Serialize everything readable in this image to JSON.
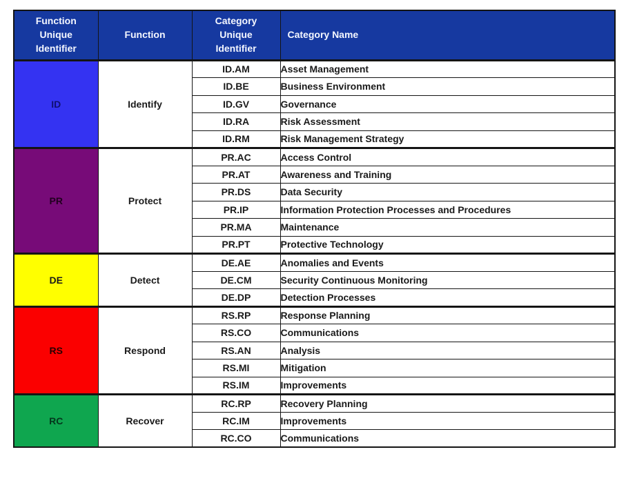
{
  "colors": {
    "header_bg": "#1639A0",
    "header_text": "#F4F7FF",
    "border": "#141414",
    "body_text": "#1A1A1A"
  },
  "table": {
    "headers": [
      "Function\nUnique\nIdentifier",
      "Function",
      "Category\nUnique\nIdentifier",
      "Category Name"
    ],
    "groups": [
      {
        "function_id": "ID",
        "function_name": "Identify",
        "color": "#3433F2",
        "label_color": "#101070",
        "categories": [
          {
            "id": "ID.AM",
            "name": "Asset Management"
          },
          {
            "id": "ID.BE",
            "name": "Business Environment"
          },
          {
            "id": "ID.GV",
            "name": "Governance"
          },
          {
            "id": "ID.RA",
            "name": "Risk Assessment"
          },
          {
            "id": "ID.RM",
            "name": "Risk Management Strategy"
          }
        ]
      },
      {
        "function_id": "PR",
        "function_name": "Protect",
        "color": "#770B78",
        "label_color": "#21001F",
        "categories": [
          {
            "id": "PR.AC",
            "name": "Access Control"
          },
          {
            "id": "PR.AT",
            "name": "Awareness and Training"
          },
          {
            "id": "PR.DS",
            "name": "Data Security"
          },
          {
            "id": "PR.IP",
            "name": "Information Protection Processes and Procedures"
          },
          {
            "id": "PR.MA",
            "name": "Maintenance"
          },
          {
            "id": "PR.PT",
            "name": "Protective Technology"
          }
        ]
      },
      {
        "function_id": "DE",
        "function_name": "Detect",
        "color": "#FFFF00",
        "label_color": "#1A1A1A",
        "categories": [
          {
            "id": "DE.AE",
            "name": "Anomalies and Events"
          },
          {
            "id": "DE.CM",
            "name": "Security Continuous Monitoring"
          },
          {
            "id": "DE.DP",
            "name": "Detection Processes"
          }
        ]
      },
      {
        "function_id": "RS",
        "function_name": "Respond",
        "color": "#FB0000",
        "label_color": "#280000",
        "categories": [
          {
            "id": "RS.RP",
            "name": "Response Planning"
          },
          {
            "id": "RS.CO",
            "name": "Communications"
          },
          {
            "id": "RS.AN",
            "name": "Analysis"
          },
          {
            "id": "RS.MI",
            "name": "Mitigation"
          },
          {
            "id": "RS.IM",
            "name": "Improvements"
          }
        ]
      },
      {
        "function_id": "RC",
        "function_name": "Recover",
        "color": "#0FA64F",
        "label_color": "#04361C",
        "categories": [
          {
            "id": "RC.RP",
            "name": "Recovery Planning"
          },
          {
            "id": "RC.IM",
            "name": "Improvements"
          },
          {
            "id": "RC.CO",
            "name": "Communications"
          }
        ]
      }
    ]
  }
}
